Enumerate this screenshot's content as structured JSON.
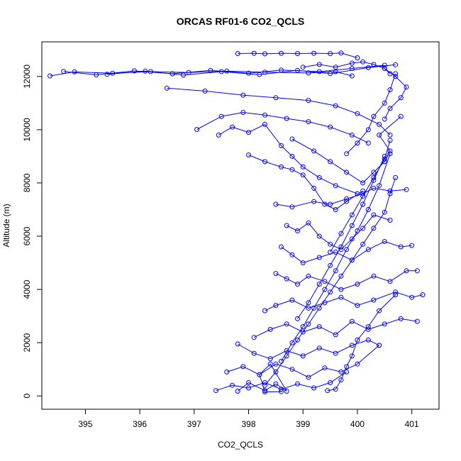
{
  "chart_data": {
    "type": "line",
    "title": "ORCAS RF01-6 CO2_QCLS",
    "xlabel": "CO2_QCLS",
    "ylabel": "Altitude (m)",
    "xlim": [
      394.2,
      401.5
    ],
    "ylim": [
      -500,
      13300
    ],
    "x_ticks": [
      395,
      396,
      397,
      398,
      399,
      400,
      401
    ],
    "y_ticks": [
      0,
      2000,
      4000,
      6000,
      8000,
      10000,
      12000
    ],
    "grid": false,
    "legend": "none",
    "color": "#0000ff",
    "marker": "open-circle",
    "series": [
      {
        "x": [
          394.35,
          394.8,
          395.5,
          396.2,
          396.9,
          397.6,
          398.3,
          399.1,
          399.6,
          399.9
        ],
        "y": [
          12020,
          12170,
          12120,
          12180,
          12150,
          12200,
          12160,
          12130,
          12180,
          12020
        ]
      },
      {
        "x": [
          394.6,
          395.2,
          395.9,
          396.6,
          397.3,
          398.0,
          398.6,
          399.3,
          399.9,
          400.5
        ],
        "y": [
          12190,
          12060,
          12210,
          12100,
          12230,
          12120,
          12240,
          12180,
          12300,
          12420
        ]
      },
      {
        "x": [
          395.4,
          396.1,
          396.8,
          397.5,
          398.2,
          398.9,
          399.5,
          400.2,
          400.7
        ],
        "y": [
          12080,
          12200,
          12050,
          12180,
          12070,
          12230,
          12110,
          12330,
          12440
        ]
      },
      {
        "x": [
          397.8,
          398.1,
          398.3,
          398.6,
          398.9,
          399.2,
          399.5,
          399.7,
          400.0
        ],
        "y": [
          12860,
          12870,
          12850,
          12870,
          12860,
          12870,
          12860,
          12880,
          12700
        ]
      },
      {
        "x": [
          396.5,
          397.2,
          397.9,
          398.5,
          399.1,
          399.6,
          400.0,
          400.4,
          400.6
        ],
        "y": [
          11560,
          11450,
          11300,
          11200,
          11100,
          10900,
          10600,
          10200,
          9800
        ]
      },
      {
        "x": [
          397.05,
          397.5,
          397.9,
          398.3,
          398.7,
          399.1,
          399.5,
          399.9,
          400.2
        ],
        "y": [
          10010,
          10500,
          10650,
          10550,
          10420,
          10300,
          10100,
          9800,
          9500
        ]
      },
      {
        "x": [
          397.45,
          397.7,
          398.0,
          398.3,
          398.6,
          398.8,
          399.0,
          399.3,
          399.6,
          400.0
        ],
        "y": [
          9800,
          10100,
          9900,
          10200,
          9400,
          9000,
          8600,
          8200,
          7900,
          7600
        ]
      },
      {
        "x": [
          398.0,
          398.3,
          398.6,
          398.8,
          399.0,
          399.2,
          399.4,
          399.6,
          399.8,
          400.1
        ],
        "y": [
          9050,
          8800,
          8600,
          8500,
          8300,
          7800,
          7200,
          7000,
          7300,
          7700
        ]
      },
      {
        "x": [
          398.8,
          399.2,
          399.5,
          399.8,
          400.1,
          400.3,
          400.5,
          400.6,
          400.4,
          400.8
        ],
        "y": [
          9650,
          9200,
          8800,
          8400,
          8000,
          8400,
          8800,
          9200,
          9800,
          10500
        ]
      },
      {
        "x": [
          398.5,
          398.8,
          399.2,
          399.5,
          399.8,
          400.1,
          400.3,
          400.6,
          400.9
        ],
        "y": [
          7200,
          7100,
          7300,
          7200,
          7400,
          7600,
          7800,
          7700,
          7750
        ]
      },
      {
        "x": [
          398.7,
          398.9,
          399.1,
          399.3,
          399.5,
          399.7,
          399.9,
          400.1,
          400.3,
          400.6
        ],
        "y": [
          6400,
          6200,
          6500,
          6000,
          5700,
          5500,
          5900,
          6300,
          6800,
          6600
        ]
      },
      {
        "x": [
          398.6,
          398.8,
          399.0,
          399.3,
          399.6,
          399.9,
          400.2,
          400.5,
          400.8,
          401.0
        ],
        "y": [
          5600,
          5300,
          5000,
          5200,
          5400,
          5100,
          5500,
          5800,
          5600,
          5650
        ]
      },
      {
        "x": [
          398.5,
          398.7,
          398.9,
          399.1,
          399.4,
          399.7,
          400.0,
          400.3,
          400.6,
          400.9,
          401.1
        ],
        "y": [
          4600,
          4400,
          4200,
          4500,
          4300,
          4000,
          4200,
          4500,
          4300,
          4700,
          4700
        ]
      },
      {
        "x": [
          398.3,
          398.5,
          398.8,
          399.1,
          399.4,
          399.7,
          400.0,
          400.3,
          400.7,
          401.0,
          401.2
        ],
        "y": [
          3200,
          3400,
          3600,
          3300,
          3500,
          3700,
          3400,
          3600,
          3900,
          3700,
          3800
        ]
      },
      {
        "x": [
          398.1,
          398.4,
          398.7,
          399.0,
          399.3,
          399.6,
          399.9,
          400.2,
          400.5,
          400.8,
          401.1
        ],
        "y": [
          2200,
          2500,
          2700,
          2400,
          2600,
          2300,
          2800,
          2500,
          2700,
          2900,
          2800
        ]
      },
      {
        "x": [
          397.8,
          398.1,
          398.4,
          398.7,
          399.0,
          399.3,
          399.6,
          399.9,
          400.2,
          400.4
        ],
        "y": [
          1950,
          1600,
          1400,
          1700,
          1500,
          1800,
          1600,
          1900,
          2100,
          1900
        ]
      },
      {
        "x": [
          397.6,
          397.9,
          398.2,
          398.5,
          398.8,
          399.1,
          399.4,
          399.7,
          400.0,
          400.4
        ],
        "y": [
          900,
          1100,
          800,
          1200,
          1000,
          700,
          1050,
          900,
          1200,
          1900
        ]
      },
      {
        "x": [
          397.4,
          397.7,
          398.0,
          398.3,
          398.6,
          398.9,
          399.2,
          399.5,
          399.8
        ],
        "y": [
          200,
          400,
          300,
          500,
          250,
          450,
          300,
          500,
          900
        ]
      },
      {
        "x": [
          397.8,
          398.0,
          398.3,
          398.5,
          398.7,
          398.4,
          398.2,
          398.3,
          398.6
        ],
        "y": [
          180,
          500,
          200,
          450,
          180,
          1200,
          800,
          150,
          160
        ]
      },
      {
        "x": [
          399.45,
          399.6,
          399.7,
          399.8,
          399.9,
          400.0,
          400.2,
          400.4,
          400.7
        ],
        "y": [
          200,
          250,
          600,
          1100,
          1500,
          2100,
          2600,
          3200,
          3800
        ]
      },
      {
        "x": [
          398.3,
          398.5,
          398.7,
          398.9,
          399.1,
          399.3,
          399.5,
          399.7,
          399.9,
          400.1,
          400.3,
          400.5,
          400.6,
          400.7
        ],
        "y": [
          400,
          900,
          1500,
          2100,
          2700,
          3300,
          3900,
          4500,
          5100,
          5700,
          6300,
          6900,
          7600,
          8200
        ]
      },
      {
        "x": [
          398.6,
          398.8,
          399.0,
          399.2,
          399.4,
          399.6,
          399.8,
          400.0,
          400.2,
          400.4,
          400.6
        ],
        "y": [
          1300,
          2000,
          2600,
          3300,
          4000,
          4700,
          5500,
          6200,
          7000,
          7900,
          9100
        ]
      },
      {
        "x": [
          398.9,
          399.1,
          399.3,
          399.5,
          399.7,
          399.9,
          400.1,
          400.3,
          400.5
        ],
        "y": [
          2900,
          3500,
          4200,
          4900,
          5600,
          6400,
          7200,
          8100,
          9000
        ]
      },
      {
        "x": [
          399.5,
          399.7,
          399.9,
          400.1,
          400.3,
          400.5,
          400.6
        ],
        "y": [
          5400,
          6100,
          6800,
          7500,
          8200,
          8900,
          9600
        ]
      },
      {
        "x": [
          399.8,
          400.0,
          400.2,
          400.3,
          400.5,
          400.6,
          400.7
        ],
        "y": [
          9100,
          9500,
          10000,
          10500,
          11000,
          11500,
          12100
        ]
      },
      {
        "x": [
          400.5,
          400.7,
          400.9,
          400.8,
          400.6,
          400.5
        ],
        "y": [
          12300,
          12000,
          11600,
          11200,
          10800,
          10400
        ]
      },
      {
        "x": [
          399.0,
          399.3,
          399.6,
          399.9,
          400.1,
          400.3,
          400.5,
          400.6
        ],
        "y": [
          12350,
          12450,
          12350,
          12500,
          12550,
          12450,
          12300,
          12100
        ]
      }
    ]
  }
}
